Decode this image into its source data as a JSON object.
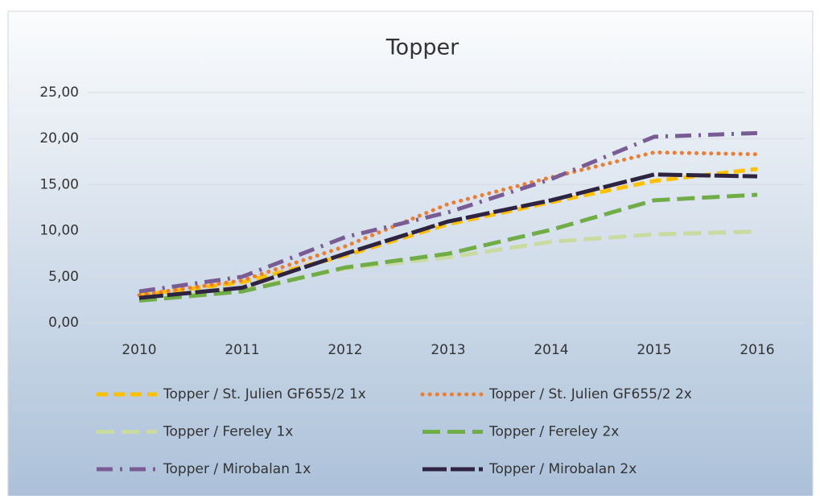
{
  "chart_data": {
    "type": "line",
    "title": "Topper",
    "categories": [
      "2010",
      "2011",
      "2012",
      "2013",
      "2014",
      "2015",
      "2016"
    ],
    "ylim": [
      0,
      25
    ],
    "yticks": [
      {
        "value": 0,
        "label": "0,00"
      },
      {
        "value": 5,
        "label": "5,00"
      },
      {
        "value": 10,
        "label": "10,00"
      },
      {
        "value": 15,
        "label": "15,00"
      },
      {
        "value": 20,
        "label": "20,00"
      },
      {
        "value": 25,
        "label": "25,00"
      }
    ],
    "grid": true,
    "legend": "bottom",
    "series": [
      {
        "name": "Topper / St. Julien GF655/2 1x",
        "color": "#ffc000",
        "dash": "dash",
        "values": [
          3.0,
          4.4,
          7.3,
          10.7,
          13.1,
          15.4,
          16.7
        ]
      },
      {
        "name": "Topper / St. Julien GF655/2 2x",
        "color": "#ed7d31",
        "dash": "dot",
        "values": [
          3.0,
          4.6,
          8.3,
          12.9,
          15.8,
          18.5,
          18.3
        ]
      },
      {
        "name": "Topper / Fereley 1x",
        "color": "#c9dba0",
        "dash": "longdash",
        "values": [
          2.6,
          3.6,
          5.9,
          7.1,
          8.8,
          9.6,
          9.9
        ]
      },
      {
        "name": "Topper / Fereley 2x",
        "color": "#70ad47",
        "dash": "longdash",
        "values": [
          2.4,
          3.4,
          6.0,
          7.5,
          10.1,
          13.3,
          13.9
        ]
      },
      {
        "name": "Topper / Mirobalan 1x",
        "color": "#7a5c94",
        "dash": "dashdot",
        "values": [
          3.4,
          5.0,
          9.3,
          12.0,
          15.6,
          20.2,
          20.6
        ]
      },
      {
        "name": "Topper / Mirobalan 2x",
        "color": "#2e2441",
        "dash": "solidlong",
        "values": [
          2.7,
          3.8,
          7.5,
          11.0,
          13.3,
          16.1,
          15.9
        ]
      }
    ]
  }
}
